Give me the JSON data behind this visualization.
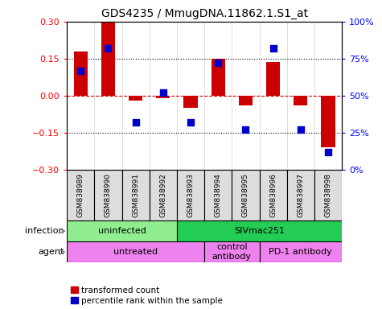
{
  "title": "GDS4235 / MmugDNA.11862.1.S1_at",
  "samples": [
    "GSM838989",
    "GSM838990",
    "GSM838991",
    "GSM838992",
    "GSM838993",
    "GSM838994",
    "GSM838995",
    "GSM838996",
    "GSM838997",
    "GSM838998"
  ],
  "red_values": [
    0.18,
    0.295,
    -0.02,
    -0.01,
    -0.05,
    0.15,
    -0.04,
    0.135,
    -0.04,
    -0.21
  ],
  "blue_values": [
    0.67,
    0.82,
    0.32,
    0.52,
    0.32,
    0.72,
    0.27,
    0.82,
    0.27,
    0.12
  ],
  "ylim_left": [
    -0.3,
    0.3
  ],
  "ylim_right": [
    0,
    1.0
  ],
  "yticks_left": [
    -0.3,
    -0.15,
    0.0,
    0.15,
    0.3
  ],
  "yticks_right": [
    0,
    0.25,
    0.5,
    0.75,
    1.0
  ],
  "ytick_labels_right": [
    "0%",
    "25%",
    "50%",
    "75%",
    "100%"
  ],
  "hlines_dotted": [
    0.15,
    -0.15
  ],
  "hline_red_dash": 0.0,
  "infection_groups": [
    {
      "label": "uninfected",
      "start": 0,
      "end": 4,
      "color": "#90EE90"
    },
    {
      "label": "SIVmac251",
      "start": 4,
      "end": 10,
      "color": "#22CC55"
    }
  ],
  "agent_groups": [
    {
      "label": "untreated",
      "start": 0,
      "end": 5
    },
    {
      "label": "control\nantibody",
      "start": 5,
      "end": 7
    },
    {
      "label": "PD-1 antibody",
      "start": 7,
      "end": 10
    }
  ],
  "agent_color": "#EE82EE",
  "red_color": "#CC0000",
  "blue_color": "#0000CC",
  "bar_width": 0.5,
  "dot_size": 40,
  "legend_red": "transformed count",
  "legend_blue": "percentile rank within the sample",
  "sample_bg": "#DDDDDD",
  "background_color": "#ffffff"
}
